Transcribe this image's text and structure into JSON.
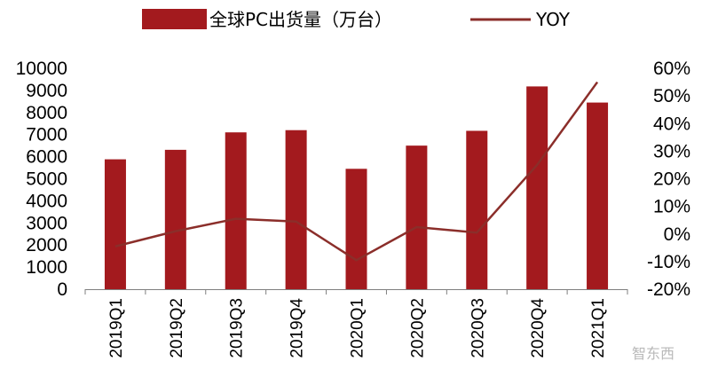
{
  "chart_data": {
    "type": "bar+line",
    "categories": [
      "2019Q1",
      "2019Q2",
      "2019Q3",
      "2019Q4",
      "2020Q1",
      "2020Q2",
      "2020Q3",
      "2020Q4",
      "2021Q1"
    ],
    "series": [
      {
        "name": "全球PC出货量（万台）",
        "type": "bar",
        "axis": "left",
        "color": "#a31a1e",
        "values": [
          5880,
          6310,
          7100,
          7200,
          5450,
          6500,
          7170,
          9180,
          8450
        ]
      },
      {
        "name": "YOY",
        "type": "line",
        "axis": "right",
        "color": "#8b2e2a",
        "values": [
          -0.045,
          0.01,
          0.055,
          0.045,
          -0.095,
          0.025,
          0.005,
          0.25,
          0.55
        ]
      }
    ],
    "left_axis": {
      "min": 0,
      "max": 10000,
      "step": 1000,
      "ticks": [
        "0",
        "1000",
        "2000",
        "3000",
        "4000",
        "5000",
        "6000",
        "7000",
        "8000",
        "9000",
        "10000"
      ]
    },
    "right_axis": {
      "min": -0.2,
      "max": 0.6,
      "step": 0.1,
      "ticks": [
        "-20%",
        "-10%",
        "0%",
        "10%",
        "20%",
        "30%",
        "40%",
        "50%",
        "60%"
      ]
    },
    "legend": {
      "placement": "top"
    },
    "grid": false
  },
  "watermark": {
    "text": "智东西"
  }
}
